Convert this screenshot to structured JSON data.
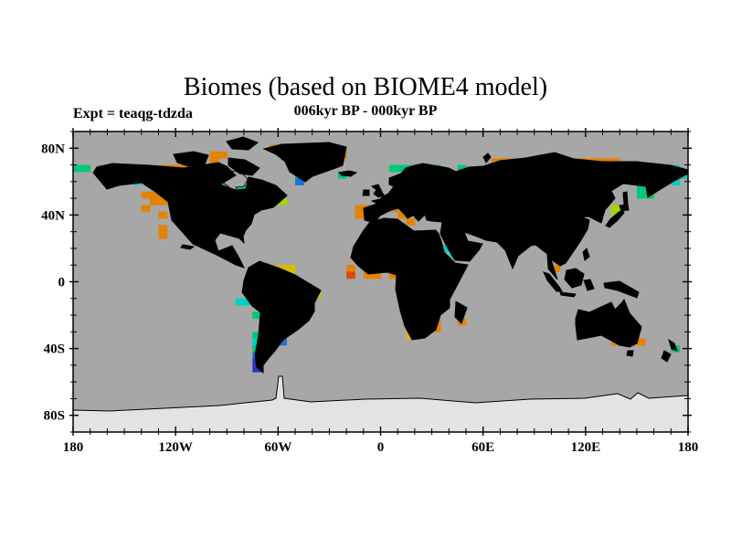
{
  "header": {
    "title": "Biomes (based on BIOME4 model)",
    "subtitle": "006kyr BP - 000kyr BP",
    "experiment_label": "Expt = teaqg-tdzda"
  },
  "axes": {
    "longitude": {
      "min": -180,
      "max": 180,
      "minor_step": 10,
      "major_step": 60,
      "tick_labels": [
        {
          "value": -180,
          "text": "180"
        },
        {
          "value": -120,
          "text": "120W"
        },
        {
          "value": -60,
          "text": "60W"
        },
        {
          "value": 0,
          "text": "0"
        },
        {
          "value": 60,
          "text": "60E"
        },
        {
          "value": 120,
          "text": "120E"
        },
        {
          "value": 180,
          "text": "180"
        }
      ]
    },
    "latitude": {
      "min": -90,
      "max": 90,
      "minor_step": 10,
      "major_step": 40,
      "tick_labels": [
        {
          "value": 80,
          "text": "80N"
        },
        {
          "value": 40,
          "text": "40N"
        },
        {
          "value": 0,
          "text": "0"
        },
        {
          "value": -40,
          "text": "40S"
        },
        {
          "value": -80,
          "text": "80S"
        }
      ]
    }
  },
  "map_colors": {
    "ocean": "#a7a7a7",
    "land": "#f0efec",
    "antarctica": "#e3e3e3",
    "coastline": "#000000",
    "frame": "#000000"
  },
  "chart_data": {
    "type": "heatmap",
    "title": "Biomes (based on BIOME4 model)",
    "subtitle": "006kyr BP - 000kyr BP",
    "experiment": "teaqg-tdzda",
    "projection": "equirectangular",
    "lon_range": [
      -180,
      180
    ],
    "lat_range": [
      -90,
      90
    ],
    "grid": {
      "cols": 72,
      "rows": 45,
      "cell_deg_lon": 5,
      "cell_deg_lat": 4
    },
    "legend": "none shown; colored cells mark grid boxes whose simulated biome at 6kyr BP differs from 0kyr BP",
    "palette": {
      "O": "#e58200",
      "R": "#d94c00",
      "Y": "#dcba00",
      "L": "#a4d500",
      "G": "#00c878",
      "C": "#00cfc4",
      "B": "#1e6fd6",
      "N": "#2736c4"
    },
    "cells": [
      [
        2,
        23,
        "O"
      ],
      [
        3,
        16,
        "OO"
      ],
      [
        3,
        31,
        "O"
      ],
      [
        4,
        16,
        "O"
      ],
      [
        4,
        49,
        "OOO"
      ],
      [
        4,
        54,
        "OOOOOOOOOO"
      ],
      [
        5,
        0,
        "GG"
      ],
      [
        5,
        3,
        "OOOOOO"
      ],
      [
        5,
        10,
        "OOOOOOO"
      ],
      [
        5,
        26,
        "G"
      ],
      [
        5,
        37,
        "GGGCC"
      ],
      [
        5,
        42,
        "G"
      ],
      [
        5,
        45,
        "G"
      ],
      [
        5,
        49,
        "OOO"
      ],
      [
        5,
        58,
        "OOOOOOOOOOO"
      ],
      [
        5,
        70,
        "C"
      ],
      [
        6,
        5,
        "GG"
      ],
      [
        6,
        8,
        "OOOOOOO"
      ],
      [
        6,
        15,
        "CC"
      ],
      [
        6,
        26,
        "G"
      ],
      [
        6,
        31,
        "G"
      ],
      [
        6,
        45,
        "G"
      ],
      [
        6,
        46,
        "BBB"
      ],
      [
        6,
        62,
        "OOO"
      ],
      [
        6,
        66,
        "G"
      ],
      [
        6,
        68,
        "C"
      ],
      [
        6,
        70,
        "CC"
      ],
      [
        7,
        7,
        "C"
      ],
      [
        7,
        13,
        "CC"
      ],
      [
        7,
        16,
        "CC"
      ],
      [
        7,
        26,
        "B"
      ],
      [
        7,
        38,
        "YO"
      ],
      [
        7,
        40,
        "O"
      ],
      [
        7,
        47,
        "BB"
      ],
      [
        7,
        67,
        "C"
      ],
      [
        7,
        70,
        "C"
      ],
      [
        8,
        16,
        "C"
      ],
      [
        8,
        18,
        "GGGL"
      ],
      [
        8,
        44,
        "CCRCC"
      ],
      [
        8,
        49,
        "C"
      ],
      [
        8,
        54,
        "R"
      ],
      [
        8,
        66,
        "G"
      ],
      [
        9,
        8,
        "OOO"
      ],
      [
        9,
        18,
        "B"
      ],
      [
        9,
        19,
        "LLLL"
      ],
      [
        9,
        50,
        "CCC"
      ],
      [
        9,
        53,
        "R"
      ],
      [
        9,
        58,
        "BB"
      ],
      [
        9,
        66,
        "GG"
      ],
      [
        10,
        9,
        "OOO"
      ],
      [
        10,
        23,
        "LL"
      ],
      [
        10,
        39,
        "YYYY"
      ],
      [
        10,
        59,
        "RBB"
      ],
      [
        11,
        8,
        "O"
      ],
      [
        11,
        14,
        "YYYY"
      ],
      [
        11,
        33,
        "OO"
      ],
      [
        11,
        37,
        "O"
      ],
      [
        11,
        39,
        "YYY"
      ],
      [
        11,
        63,
        "L"
      ],
      [
        12,
        10,
        "O"
      ],
      [
        12,
        16,
        "Y"
      ],
      [
        12,
        33,
        "OY"
      ],
      [
        12,
        38,
        "O"
      ],
      [
        12,
        52,
        "B"
      ],
      [
        12,
        55,
        "Y"
      ],
      [
        12,
        63,
        "L"
      ],
      [
        13,
        15,
        "C"
      ],
      [
        13,
        39,
        "O"
      ],
      [
        13,
        45,
        "CCC"
      ],
      [
        13,
        48,
        "CC"
      ],
      [
        13,
        52,
        "B"
      ],
      [
        13,
        54,
        "BCC"
      ],
      [
        13,
        57,
        "C"
      ],
      [
        14,
        10,
        "O"
      ],
      [
        14,
        18,
        "O"
      ],
      [
        14,
        45,
        "CCCCC"
      ],
      [
        14,
        51,
        "N"
      ],
      [
        14,
        57,
        "C"
      ],
      [
        15,
        10,
        "O"
      ],
      [
        15,
        54,
        "GGG"
      ],
      [
        16,
        14,
        "YY"
      ],
      [
        16,
        53,
        "OO"
      ],
      [
        17,
        43,
        "CC"
      ],
      [
        18,
        33,
        "YYY"
      ],
      [
        18,
        38,
        "CC"
      ],
      [
        18,
        40,
        "CC"
      ],
      [
        18,
        44,
        "C"
      ],
      [
        19,
        43,
        "C"
      ],
      [
        20,
        21,
        "YY"
      ],
      [
        20,
        23,
        "YYY"
      ],
      [
        20,
        32,
        "O"
      ],
      [
        20,
        34,
        "O"
      ],
      [
        20,
        56,
        "O"
      ],
      [
        21,
        24,
        "YY"
      ],
      [
        21,
        32,
        "R"
      ],
      [
        21,
        34,
        "OO"
      ],
      [
        21,
        37,
        "OOO"
      ],
      [
        21,
        44,
        "C"
      ],
      [
        22,
        21,
        "O"
      ],
      [
        22,
        44,
        "C"
      ],
      [
        23,
        21,
        "O"
      ],
      [
        23,
        24,
        "YYY"
      ],
      [
        23,
        39,
        "OO"
      ],
      [
        24,
        21,
        "O"
      ],
      [
        24,
        25,
        "YY"
      ],
      [
        24,
        27,
        "YY"
      ],
      [
        24,
        38,
        "OOY"
      ],
      [
        25,
        19,
        "CC"
      ],
      [
        25,
        22,
        "OOOO"
      ],
      [
        25,
        27,
        "Y"
      ],
      [
        25,
        38,
        "YYYOY"
      ],
      [
        26,
        23,
        "OO"
      ],
      [
        26,
        39,
        "OYY"
      ],
      [
        27,
        21,
        "G"
      ],
      [
        27,
        23,
        "OO"
      ],
      [
        27,
        25,
        "Y"
      ],
      [
        27,
        40,
        "Y"
      ],
      [
        28,
        24,
        "OY"
      ],
      [
        28,
        42,
        "O"
      ],
      [
        28,
        45,
        "O"
      ],
      [
        29,
        39,
        "OY"
      ],
      [
        29,
        42,
        "O"
      ],
      [
        29,
        59,
        "YY"
      ],
      [
        29,
        62,
        "YY"
      ],
      [
        30,
        21,
        "G"
      ],
      [
        30,
        39,
        "YY"
      ],
      [
        31,
        21,
        "C"
      ],
      [
        31,
        24,
        "B"
      ],
      [
        31,
        63,
        "OOYO"
      ],
      [
        32,
        21,
        "G"
      ],
      [
        32,
        70,
        "G"
      ],
      [
        33,
        21,
        "B"
      ],
      [
        34,
        21,
        "N"
      ],
      [
        35,
        21,
        "N"
      ]
    ]
  }
}
